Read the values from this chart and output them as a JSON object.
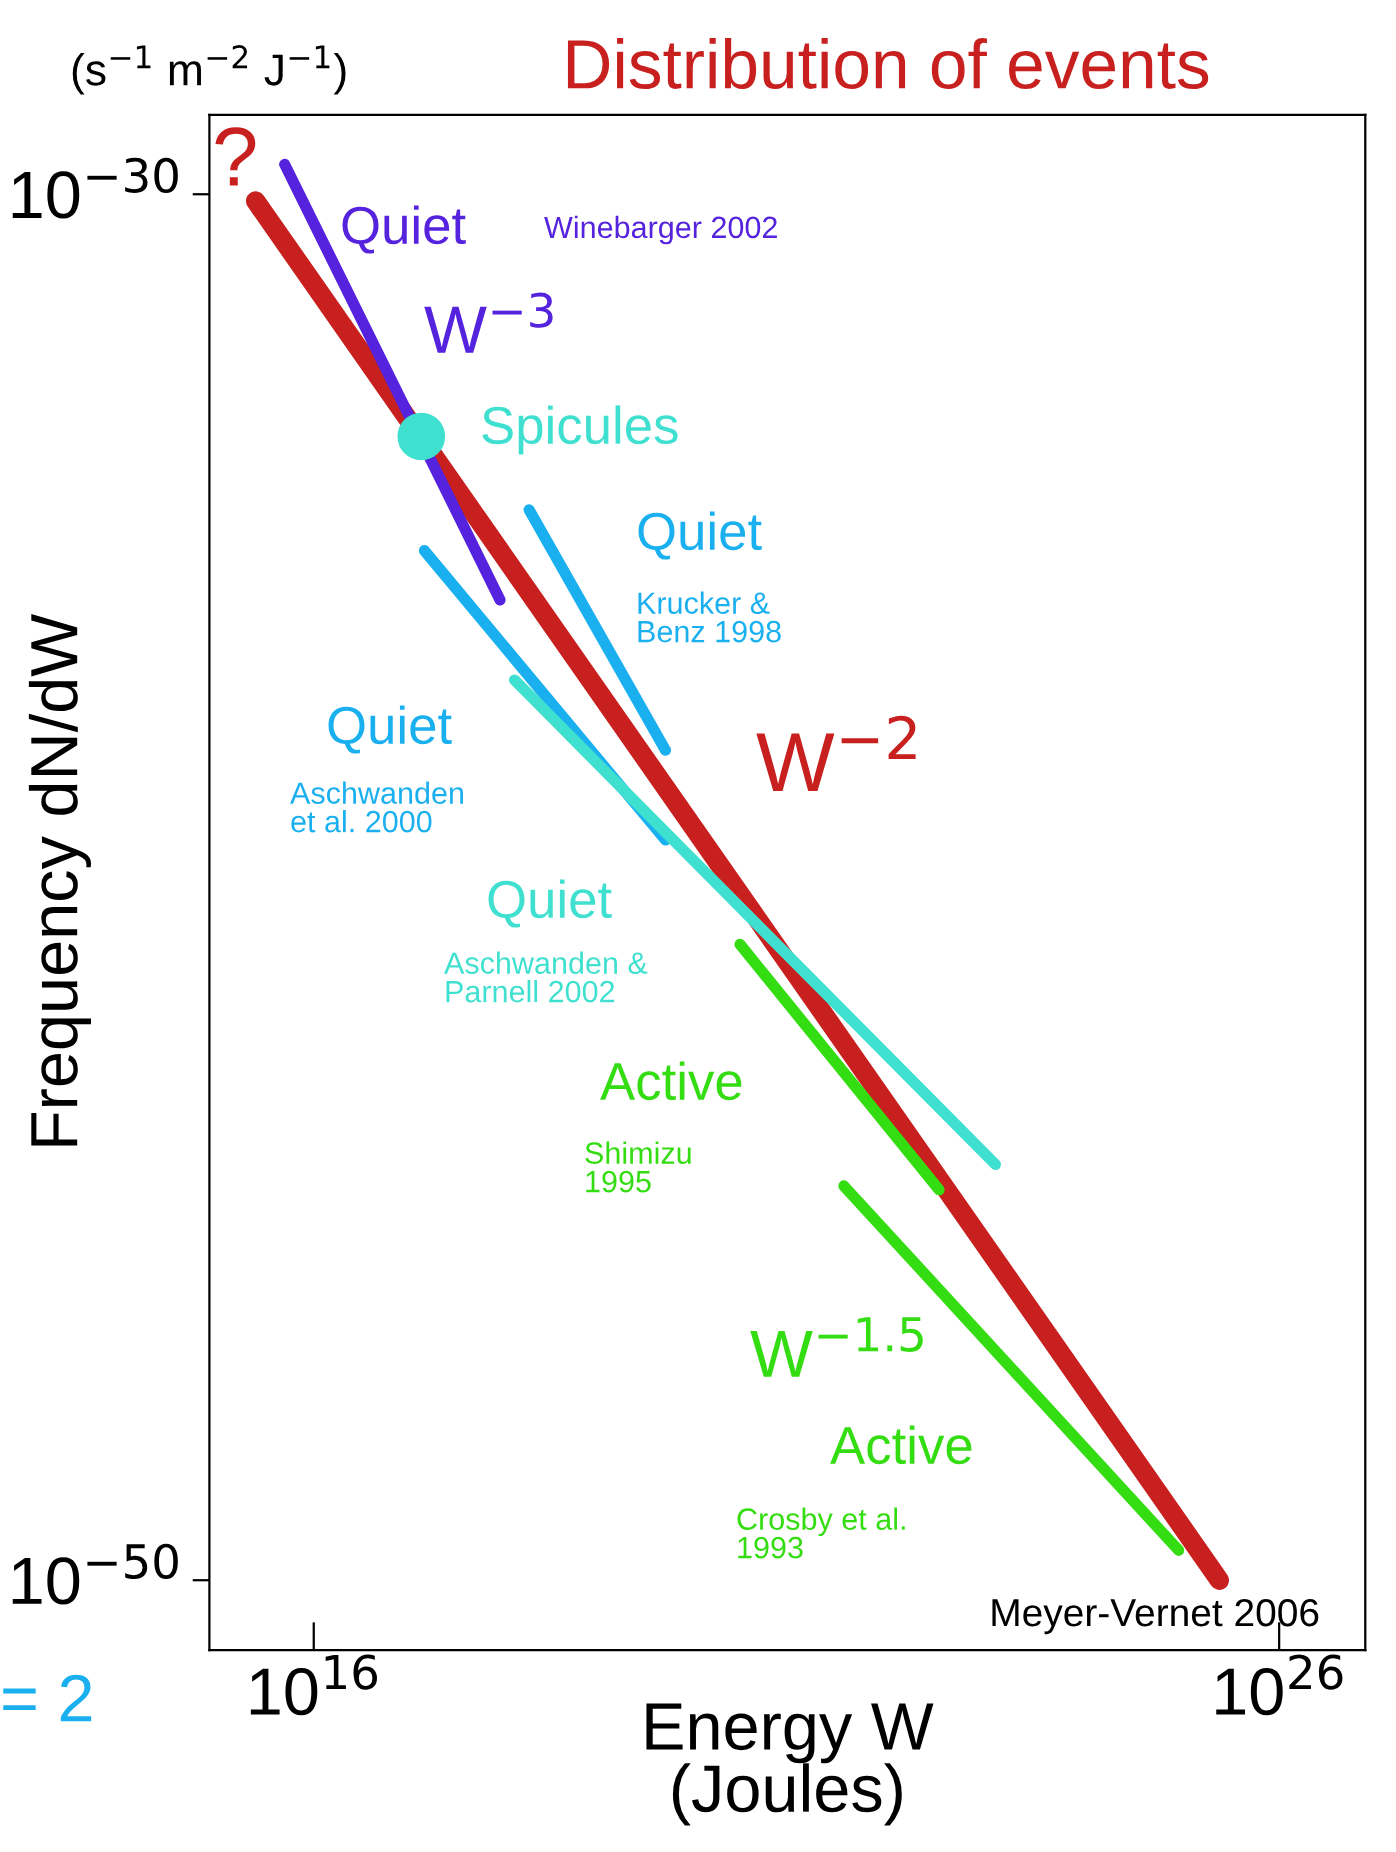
{
  "chart_data": {
    "type": "line",
    "title": "Distribution of events",
    "xlabel": "Energy W\n(Joules)",
    "ylabel": "Frequency dN/dW",
    "log": "xy",
    "xlim": [
      830000000000000.0,
      7.8e+26
    ],
    "ylim": [
      9.8e-52,
      1.4e-29
    ],
    "xticks": [
      {
        "value": 1e+16,
        "label": "10$^{16}$"
      },
      {
        "value": 1e+26,
        "label": "10$^{26}$"
      }
    ],
    "yticks": [
      {
        "value": 1e-30,
        "label": "10$^{−30}$"
      },
      {
        "value": 1e-50,
        "label": "10$^{−50}$"
      }
    ],
    "grid": false,
    "legend": false,
    "series": [
      {
        "color": "#c8201e",
        "x": [
          2500000000000000.0,
          2.4e+25
        ],
        "values": [
          8e-31,
          1e-50
        ]
      },
      {
        "color": "#5522dd",
        "x": [
          5000000000000000.0,
          8.5e+17
        ],
        "values": [
          2.7e-30,
          1.4e-36
        ]
      },
      {
        "type": "scatter",
        "color": "#40e0d0",
        "x": [
          1.3e+17
        ],
        "values": [
          3.2e-34
        ]
      },
      {
        "color": "#1ab0f0",
        "x": [
          1.7e+18,
          4.4e+19
        ],
        "values": [
          2.8e-35,
          9.5e-39
        ]
      },
      {
        "color": "#1ab0f0",
        "x": [
          1.4e+17,
          4.4e+19
        ],
        "values": [
          7.2e-36,
          4.8e-40
        ]
      },
      {
        "color": "#40e0d0",
        "x": [
          1.2e+18,
          1.15e+23
        ],
        "values": [
          9.8e-38,
          1e-44
        ]
      },
      {
        "color": "#33dd11",
        "x": [
          2.6e+20,
          3e+22
        ],
        "values": [
          1.5e-41,
          4.3e-45
        ]
      },
      {
        "color": "#33dd11",
        "x": [
          3.1e+21,
          9.1e+24
        ],
        "values": [
          4.9e-45,
          2.7e-50
        ]
      }
    ],
    "annotations": [
      "(s$^{−1}$ m$^{−2}$ J$^{−1}$)",
      "Meyer-Vernet 2006",
      "= 2",
      "?",
      "Quiet",
      "Winebarger 2002",
      "W$^{−3}$",
      "Spicules",
      "Quiet",
      "Krucker &\nBenz 1998",
      "W$^{−2}$",
      "Quiet",
      "Aschwanden\net al. 2000",
      "Quiet",
      "Aschwanden &\nParnell 2002",
      "Active",
      "Shimizu\n1995",
      "W$^{−1.5}$",
      "Active",
      "Crosby et al.\n1993"
    ]
  }
}
